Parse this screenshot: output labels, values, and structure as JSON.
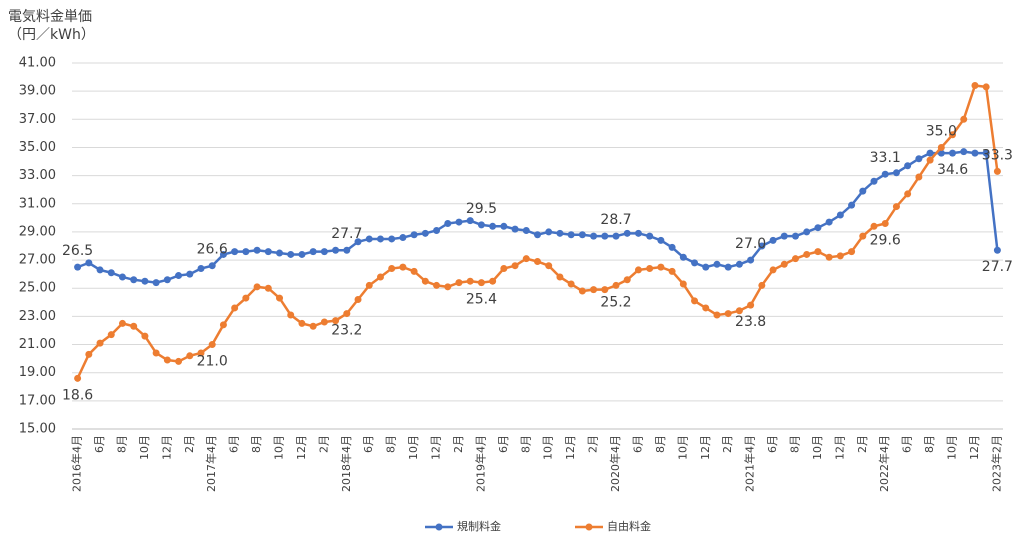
{
  "chart_data": {
    "type": "line",
    "ylabel": [
      "電気料金単価",
      "（円／kWh）"
    ],
    "categories": [
      "2016年4月",
      null,
      "6月",
      null,
      "8月",
      null,
      "10月",
      null,
      "12月",
      null,
      "2月",
      null,
      "2017年4月",
      null,
      "6月",
      null,
      "8月",
      null,
      "10月",
      null,
      "12月",
      null,
      "2月",
      null,
      "2018年4月",
      null,
      "6月",
      null,
      "8月",
      null,
      "10月",
      null,
      "12月",
      null,
      "2月",
      null,
      "2019年4月",
      null,
      "6月",
      null,
      "8月",
      null,
      "10月",
      null,
      "12月",
      null,
      "2月",
      null,
      "2020年4月",
      null,
      "6月",
      null,
      "8月",
      null,
      "10月",
      null,
      "12月",
      null,
      "2月",
      null,
      "2021年4月",
      null,
      "6月",
      null,
      "8月",
      null,
      "10月",
      null,
      "12月",
      null,
      "2月",
      null,
      "2022年4月",
      null,
      "6月",
      null,
      "8月",
      null,
      "10月",
      null,
      "12月",
      null,
      "2023年2月"
    ],
    "series": [
      {
        "name": "規制料金",
        "color": "#4472c4",
        "values": [
          26.5,
          26.8,
          26.3,
          26.1,
          25.8,
          25.6,
          25.5,
          25.4,
          25.6,
          25.9,
          26.0,
          26.4,
          26.6,
          27.4,
          27.6,
          27.6,
          27.7,
          27.6,
          27.5,
          27.4,
          27.4,
          27.6,
          27.6,
          27.7,
          27.7,
          28.3,
          28.5,
          28.5,
          28.5,
          28.6,
          28.8,
          28.9,
          29.1,
          29.6,
          29.7,
          29.8,
          29.5,
          29.4,
          29.4,
          29.2,
          29.1,
          28.8,
          29.0,
          28.9,
          28.8,
          28.8,
          28.7,
          28.7,
          28.7,
          28.9,
          28.9,
          28.7,
          28.4,
          27.9,
          27.2,
          26.8,
          26.5,
          26.7,
          26.5,
          26.7,
          27.0,
          28.0,
          28.4,
          28.7,
          28.7,
          29.0,
          29.3,
          29.7,
          30.2,
          30.9,
          31.9,
          32.6,
          33.1,
          33.2,
          33.7,
          34.2,
          34.6,
          34.6,
          34.6,
          34.7,
          34.6,
          34.6,
          27.7
        ],
        "value_labels": [
          "26.5",
          null,
          null,
          null,
          null,
          null,
          null,
          null,
          null,
          null,
          null,
          null,
          "26.6",
          null,
          null,
          null,
          null,
          null,
          null,
          null,
          null,
          null,
          null,
          null,
          "27.7",
          null,
          null,
          null,
          null,
          null,
          null,
          null,
          null,
          null,
          null,
          null,
          "29.5",
          null,
          null,
          null,
          null,
          null,
          null,
          null,
          null,
          null,
          null,
          null,
          "28.7",
          null,
          null,
          null,
          null,
          null,
          null,
          null,
          null,
          null,
          null,
          null,
          "27.0",
          null,
          null,
          null,
          null,
          null,
          null,
          null,
          null,
          null,
          null,
          null,
          "33.1",
          null,
          null,
          null,
          null,
          null,
          "34.6",
          null,
          null,
          null,
          "27.7"
        ]
      },
      {
        "name": "自由料金",
        "color": "#ed7d31",
        "values": [
          18.6,
          20.3,
          21.1,
          21.7,
          22.5,
          22.3,
          21.6,
          20.4,
          19.9,
          19.8,
          20.2,
          20.4,
          21.0,
          22.4,
          23.6,
          24.3,
          25.1,
          25.0,
          24.3,
          23.1,
          22.5,
          22.3,
          22.6,
          22.7,
          23.2,
          24.2,
          25.2,
          25.8,
          26.4,
          26.5,
          26.2,
          25.5,
          25.2,
          25.1,
          25.4,
          25.5,
          25.4,
          25.5,
          26.4,
          26.6,
          27.1,
          26.9,
          26.6,
          25.8,
          25.3,
          24.8,
          24.9,
          24.9,
          25.2,
          25.6,
          26.3,
          26.4,
          26.5,
          26.2,
          25.3,
          24.1,
          23.6,
          23.1,
          23.2,
          23.4,
          23.8,
          25.2,
          26.3,
          26.7,
          27.1,
          27.4,
          27.6,
          27.2,
          27.3,
          27.6,
          28.7,
          29.4,
          29.6,
          30.8,
          31.7,
          32.9,
          34.1,
          35.0,
          35.9,
          37.0,
          39.4,
          39.3,
          33.3
        ],
        "value_labels": [
          "18.6",
          null,
          null,
          null,
          null,
          null,
          null,
          null,
          null,
          null,
          null,
          null,
          "21.0",
          null,
          null,
          null,
          null,
          null,
          null,
          null,
          null,
          null,
          null,
          null,
          "23.2",
          null,
          null,
          null,
          null,
          null,
          null,
          null,
          null,
          null,
          null,
          null,
          "25.4",
          null,
          null,
          null,
          null,
          null,
          null,
          null,
          null,
          null,
          null,
          null,
          "25.2",
          null,
          null,
          null,
          null,
          null,
          null,
          null,
          null,
          null,
          null,
          null,
          "23.8",
          null,
          null,
          null,
          null,
          null,
          null,
          null,
          null,
          null,
          null,
          null,
          "29.6",
          null,
          null,
          null,
          null,
          "35.0",
          null,
          null,
          null,
          null,
          "33.3"
        ]
      }
    ],
    "ylim": [
      15,
      41
    ],
    "yticks": [
      {
        "value": 15,
        "label": "15.00"
      },
      {
        "value": 17,
        "label": "17.00"
      },
      {
        "value": 19,
        "label": "19.00"
      },
      {
        "value": 21,
        "label": "21.00"
      },
      {
        "value": 23,
        "label": "23.00"
      },
      {
        "value": 25,
        "label": "25.00"
      },
      {
        "value": 27,
        "label": "27.00"
      },
      {
        "value": 29,
        "label": "29.00"
      },
      {
        "value": 31,
        "label": "31.00"
      },
      {
        "value": 33,
        "label": "33.00"
      },
      {
        "value": 35,
        "label": "35.00"
      },
      {
        "value": 37,
        "label": "37.00"
      },
      {
        "value": 39,
        "label": "39.00"
      },
      {
        "value": 41,
        "label": "41.00"
      }
    ],
    "grid": true,
    "legend": "bottom"
  }
}
